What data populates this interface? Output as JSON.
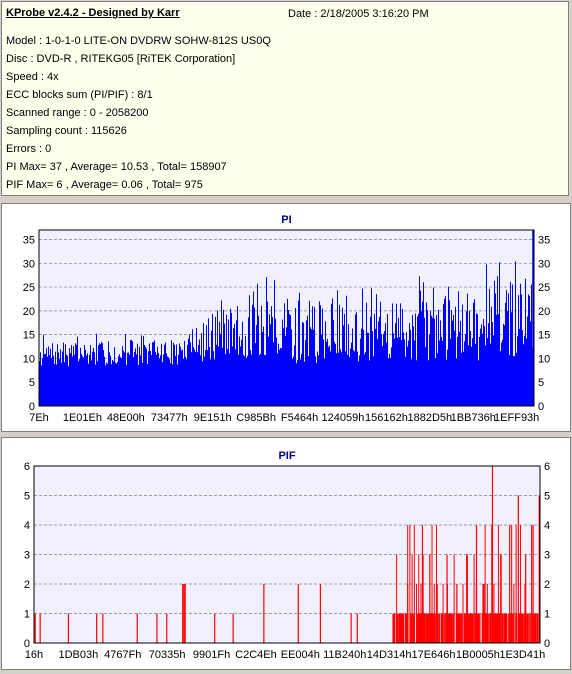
{
  "header": {
    "title": "KProbe v2.4.2 - Designed by Karr",
    "date": "Date : 2/18/2005 3:16:20 PM",
    "lines": [
      "Model : 1-0-1-0 LITE-ON DVDRW SOHW-812S  US0Q",
      "Disc : DVD-R , RITEKG05 [RiTEK Corporation]",
      "Speed : 4x",
      "ECC blocks sum (PI/PIF) : 8/1",
      "Scanned range : 0 - 2058200",
      "Sampling count : 115626",
      "Errors : 0",
      "PI Max= 37 , Average= 10.53 , Total= 158907",
      "PIF Max= 6 , Average= 0.06 , Total= 975"
    ]
  },
  "colors": {
    "pi_fill": "#0000ff",
    "pif_fill": "#ff0000",
    "plot_bg": "#f0f0ff",
    "grid": "#808080"
  },
  "chart_data": [
    {
      "type": "area",
      "title": "PI",
      "ylim": [
        0,
        37
      ],
      "yticks": [
        0,
        5,
        10,
        15,
        20,
        25,
        30,
        35
      ],
      "xticks": [
        "7Eh",
        "1E01Eh",
        "48E00h",
        "73477h",
        "9E151h",
        "C985Bh",
        "F5464h",
        "124059h",
        "156162h",
        "1882D5h",
        "1BB736h",
        "1EFF93h"
      ],
      "x_range": [
        0,
        2058200
      ],
      "grid": true,
      "profile": [
        {
          "x": 0,
          "avg": 9.5,
          "peak": 15
        },
        {
          "x": 600000,
          "avg": 10,
          "peak": 16
        },
        {
          "x": 660000,
          "avg": 11,
          "peak": 20
        },
        {
          "x": 750000,
          "avg": 12.5,
          "peak": 25
        },
        {
          "x": 1000000,
          "avg": 12.5,
          "peak": 28
        },
        {
          "x": 1300000,
          "avg": 12,
          "peak": 26
        },
        {
          "x": 1600000,
          "avg": 13,
          "peak": 28
        },
        {
          "x": 1900000,
          "avg": 13.5,
          "peak": 31
        },
        {
          "x": 2058200,
          "avg": 14,
          "peak": 37
        }
      ]
    },
    {
      "type": "bar",
      "title": "PIF",
      "ylim": [
        0,
        6
      ],
      "yticks": [
        0,
        1,
        2,
        3,
        4,
        5,
        6
      ],
      "xticks": [
        "16h",
        "1DB03h",
        "4767Fh",
        "70335h",
        "9901Fh",
        "C2C4Eh",
        "EE004h",
        "11B240h",
        "14D314h",
        "17E646h",
        "1B0005h",
        "1E3D41h"
      ],
      "x_range": [
        0,
        2058200
      ],
      "grid": true,
      "spikes": [
        {
          "x": 5000,
          "v": 1
        },
        {
          "x": 25000,
          "v": 1
        },
        {
          "x": 140000,
          "v": 1
        },
        {
          "x": 255000,
          "v": 1
        },
        {
          "x": 280000,
          "v": 1
        },
        {
          "x": 420000,
          "v": 1
        },
        {
          "x": 500000,
          "v": 1
        },
        {
          "x": 540000,
          "v": 1
        },
        {
          "x": 605000,
          "v": 2
        },
        {
          "x": 610000,
          "v": 2
        },
        {
          "x": 615000,
          "v": 2
        },
        {
          "x": 735000,
          "v": 1
        },
        {
          "x": 810000,
          "v": 1
        },
        {
          "x": 935000,
          "v": 2
        },
        {
          "x": 1075000,
          "v": 2
        },
        {
          "x": 1165000,
          "v": 2
        },
        {
          "x": 1290000,
          "v": 1
        },
        {
          "x": 1315000,
          "v": 1
        },
        {
          "x": 1520000,
          "v": 2
        },
        {
          "x": 1580000,
          "v": 4
        },
        {
          "x": 1610000,
          "v": 3
        },
        {
          "x": 1640000,
          "v": 2
        },
        {
          "x": 1680000,
          "v": 3
        },
        {
          "x": 1720000,
          "v": 2
        },
        {
          "x": 1760000,
          "v": 3
        },
        {
          "x": 1800000,
          "v": 4
        },
        {
          "x": 1830000,
          "v": 2
        },
        {
          "x": 1865000,
          "v": 6
        },
        {
          "x": 1900000,
          "v": 3
        },
        {
          "x": 1935000,
          "v": 4
        },
        {
          "x": 1970000,
          "v": 5
        },
        {
          "x": 2000000,
          "v": 3
        },
        {
          "x": 2030000,
          "v": 4
        },
        {
          "x": 2055000,
          "v": 5
        }
      ],
      "dense_region": {
        "from": 1460000,
        "to": 2058200,
        "base": 1
      }
    }
  ]
}
